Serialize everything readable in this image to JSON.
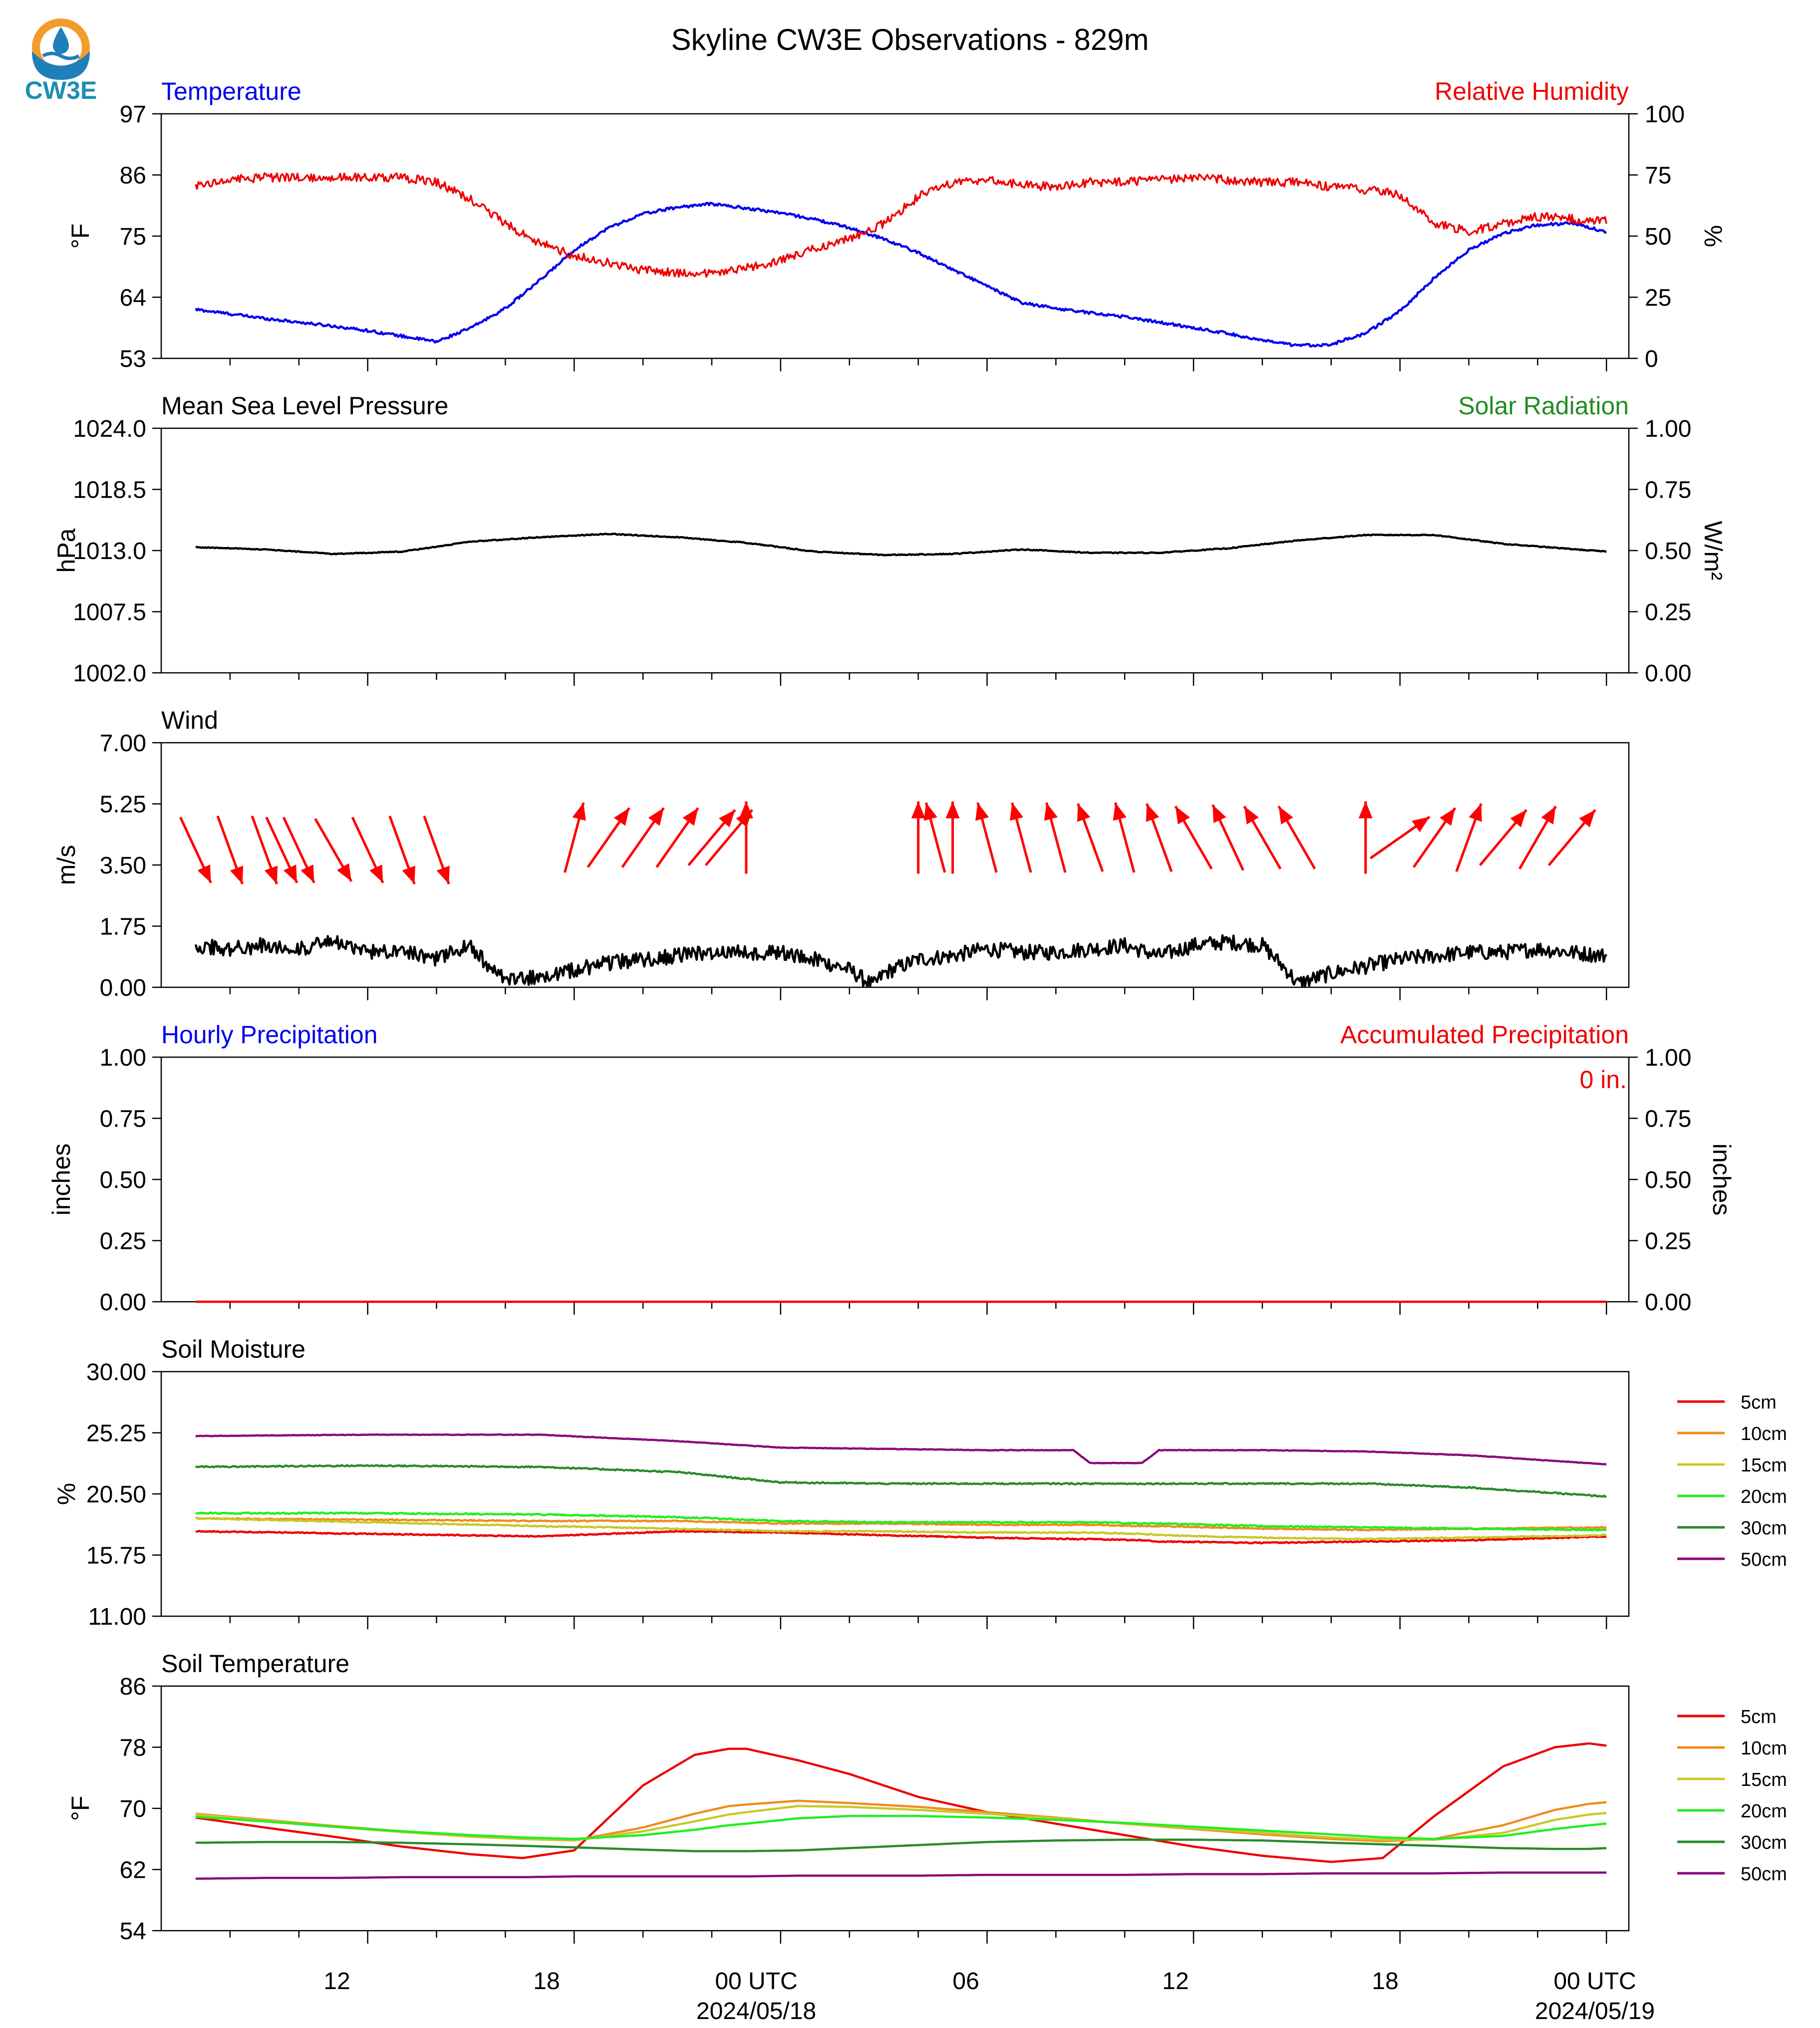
{
  "title": "Skyline CW3E Observations - 829m",
  "logo": {
    "text": "CW3E",
    "colors": {
      "sun": "#f39c2b",
      "ocean": "#1f7fb8",
      "text": "#1c8fb0"
    }
  },
  "time_axis": {
    "ticks": [
      "12",
      "18",
      "00 UTC",
      "06",
      "12",
      "18",
      "00 UTC"
    ],
    "dates": [
      "2024/05/18",
      "2024/05/19"
    ]
  },
  "chart_data": [
    {
      "type": "line",
      "name": "temperature-humidity",
      "left_title": "Temperature",
      "right_title": "Relative Humidity",
      "ylabel": "°F",
      "ylabel_right": "%",
      "ylim": [
        53,
        97
      ],
      "ylim_right": [
        0,
        100
      ],
      "yticks": [
        "53",
        "64",
        "75",
        "86",
        "97"
      ],
      "yticks_right": [
        "0",
        "25",
        "50",
        "75",
        "100"
      ],
      "x_hours": [
        7,
        8,
        9,
        10,
        11,
        12,
        13,
        14,
        15,
        16,
        17,
        18,
        19,
        20,
        21,
        22,
        23,
        24,
        25,
        26,
        27,
        28,
        29,
        30,
        31,
        32,
        33,
        34,
        35,
        36,
        37,
        38,
        39,
        40,
        41,
        42,
        43,
        44,
        45,
        46,
        47,
        48
      ],
      "series": [
        {
          "color": "#0000ee",
          "noise": 0.25,
          "values": [
            61.8,
            61.0,
            60.2,
            59.5,
            58.8,
            58.0,
            57.0,
            56.0,
            58.5,
            62.0,
            67.0,
            72.5,
            76.5,
            79.0,
            80.2,
            80.8,
            80.0,
            79.2,
            78.0,
            76.5,
            74.5,
            72.0,
            69.0,
            66.0,
            63.0,
            62.0,
            61.2,
            60.5,
            59.5,
            58.5,
            57.5,
            56.2,
            55.3,
            55.5,
            57.5,
            61.5,
            67.5,
            72.5,
            75.5,
            77.0,
            77.3,
            75.8
          ]
        },
        {
          "color": "#ee0000",
          "noise": 1.8,
          "right_axis": true,
          "values": [
            71,
            73,
            74,
            74,
            74,
            74,
            74,
            72,
            65,
            55,
            47,
            42,
            39,
            36,
            35,
            35,
            37,
            40,
            45,
            49,
            55,
            66,
            72,
            73,
            71,
            70,
            72,
            72,
            73,
            74,
            73,
            72,
            72,
            70,
            69,
            67,
            55,
            52,
            55,
            58,
            57,
            56
          ]
        }
      ]
    },
    {
      "type": "line",
      "name": "pressure",
      "left_title": "Mean Sea Level Pressure",
      "right_title": "Solar Radiation",
      "ylabel": "hPa",
      "ylabel_right": "W/m²",
      "ylim": [
        1002.0,
        1024.0
      ],
      "ylim_right": [
        0.0,
        1.0
      ],
      "yticks": [
        "1002.0",
        "1007.5",
        "1013.0",
        "1018.5",
        "1024.0"
      ],
      "yticks_right": [
        "0.00",
        "0.25",
        "0.50",
        "0.75",
        "1.00"
      ],
      "x_hours": [
        7,
        9,
        11,
        13,
        15,
        17,
        19,
        21,
        23,
        25,
        27,
        29,
        31,
        33,
        35,
        37,
        39,
        41,
        43,
        45,
        48
      ],
      "series": [
        {
          "color": "#000000",
          "noise": 0.04,
          "values": [
            1013.3,
            1013.1,
            1012.7,
            1012.9,
            1013.8,
            1014.2,
            1014.5,
            1014.2,
            1013.7,
            1012.9,
            1012.6,
            1012.7,
            1013.1,
            1012.8,
            1012.8,
            1013.2,
            1013.9,
            1014.4,
            1014.4,
            1013.6,
            1012.9
          ]
        }
      ]
    },
    {
      "type": "line",
      "name": "wind",
      "left_title": "Wind",
      "ylabel": "m/s",
      "ylim": [
        0.0,
        7.0
      ],
      "yticks": [
        "0.00",
        "1.75",
        "3.50",
        "5.25",
        "7.00"
      ],
      "x_hours": [
        7,
        8,
        9,
        10,
        11,
        12,
        13,
        14,
        15,
        15.5,
        16,
        17,
        18,
        19,
        20,
        21,
        22,
        23,
        24,
        25,
        26,
        26.7,
        27,
        28,
        29,
        30,
        31,
        32,
        33,
        34,
        35,
        36,
        37,
        38,
        38.8,
        39,
        40,
        41,
        42,
        43,
        44,
        45,
        46,
        47,
        48
      ],
      "series": [
        {
          "color": "#000000",
          "noise": 0.22,
          "values": [
            1.2,
            1.1,
            1.2,
            1.1,
            1.3,
            1.0,
            1.1,
            0.8,
            1.2,
            0.6,
            0.2,
            0.3,
            0.5,
            0.7,
            0.8,
            0.9,
            1.0,
            1.0,
            1.0,
            0.8,
            0.5,
            0.05,
            0.4,
            0.8,
            0.9,
            1.1,
            1.0,
            1.0,
            1.1,
            1.2,
            0.9,
            1.2,
            1.3,
            1.2,
            0.4,
            0.1,
            0.4,
            0.6,
            0.8,
            0.9,
            1.0,
            1.0,
            1.1,
            1.0,
            0.9
          ]
        }
      ],
      "arrows": {
        "color": "#ff0000",
        "hours": [
          7,
          8,
          9,
          9.5,
          10,
          11,
          12,
          13,
          14,
          18,
          19,
          20,
          21,
          22,
          22.5,
          23,
          28,
          28.5,
          29,
          30,
          31,
          32,
          33,
          34,
          35,
          36,
          37,
          38,
          39,
          41,
          42,
          43,
          44,
          45,
          46,
          47
        ],
        "directions_deg": [
          335,
          340,
          340,
          335,
          335,
          330,
          335,
          340,
          340,
          195,
          215,
          215,
          215,
          220,
          220,
          180,
          180,
          165,
          180,
          165,
          165,
          165,
          160,
          165,
          160,
          150,
          155,
          150,
          150,
          180,
          235,
          215,
          200,
          220,
          210,
          220
        ],
        "strength": [
          0.0,
          0.0,
          0.0,
          0.0,
          0.0,
          0.0,
          0.0,
          0.0,
          0.0,
          0.0,
          0.0,
          0.0,
          0.0,
          0.0,
          0.0,
          0.0,
          0.0,
          0.0,
          0.0,
          0.0,
          0.0,
          0.0,
          0.0,
          0.0,
          0.0,
          0.0,
          0.0,
          0.0,
          0.0,
          0.0,
          0.0,
          0.0,
          0.0,
          0.0,
          0.0,
          0.0
        ]
      }
    },
    {
      "type": "bar",
      "name": "precipitation",
      "left_title": "Hourly Precipitation",
      "right_title": "Accumulated Precipitation",
      "annotation": "0 in.",
      "ylabel": "inches",
      "ylabel_right": "inches",
      "ylim": [
        0.0,
        1.0
      ],
      "ylim_right": [
        0.0,
        1.0
      ],
      "yticks": [
        "0.00",
        "0.25",
        "0.50",
        "0.75",
        "1.00"
      ],
      "yticks_right": [
        "0.00",
        "0.25",
        "0.50",
        "0.75",
        "1.00"
      ],
      "x_hours": [
        7,
        48
      ],
      "series": [
        {
          "color": "#ee0000",
          "noise": 0,
          "right_axis": true,
          "values": [
            0,
            0
          ]
        }
      ]
    },
    {
      "type": "line",
      "name": "soil-moisture",
      "left_title": "Soil Moisture",
      "ylabel": "%",
      "ylim": [
        11.0,
        30.0
      ],
      "yticks": [
        "11.00",
        "15.75",
        "20.50",
        "25.25",
        "30.00"
      ],
      "x_hours": [
        7,
        12,
        17,
        21,
        24,
        27,
        30,
        32.5,
        33,
        34.5,
        35,
        38,
        41,
        44,
        48
      ],
      "series": [
        {
          "name": "5cm",
          "color": "#ee0000",
          "noise": 0.04,
          "values": [
            17.6,
            17.4,
            17.2,
            17.6,
            17.5,
            17.3,
            17.1,
            17.0,
            17.0,
            16.9,
            16.8,
            16.7,
            16.8,
            16.9,
            17.2
          ]
        },
        {
          "name": "10cm",
          "color": "#f08c1e",
          "noise": 0.04,
          "values": [
            18.6,
            18.5,
            18.4,
            18.4,
            18.2,
            18.2,
            18.1,
            18.1,
            18.1,
            18.0,
            18.0,
            17.8,
            17.7,
            17.8,
            17.9
          ]
        },
        {
          "name": "15cm",
          "color": "#c8c82a",
          "noise": 0.04,
          "values": [
            18.6,
            18.3,
            18.0,
            17.8,
            17.6,
            17.6,
            17.5,
            17.5,
            17.5,
            17.4,
            17.3,
            17.1,
            17.0,
            17.1,
            17.3
          ]
        },
        {
          "name": "20cm",
          "color": "#22ee22",
          "noise": 0.05,
          "values": [
            19.0,
            19.0,
            18.9,
            18.7,
            18.4,
            18.3,
            18.3,
            18.3,
            18.3,
            18.2,
            18.2,
            18.0,
            17.9,
            17.8,
            17.7
          ]
        },
        {
          "name": "30cm",
          "color": "#2a8a2a",
          "noise": 0.05,
          "values": [
            22.6,
            22.7,
            22.6,
            22.2,
            21.4,
            21.3,
            21.3,
            21.3,
            21.3,
            21.3,
            21.3,
            21.3,
            21.3,
            21.0,
            20.3
          ]
        },
        {
          "name": "50cm",
          "color": "#8b0a7a",
          "noise": 0.02,
          "values": [
            25.0,
            25.1,
            25.1,
            24.6,
            24.1,
            24.0,
            23.9,
            23.9,
            22.9,
            22.9,
            23.9,
            23.9,
            23.8,
            23.5,
            22.8
          ]
        }
      ]
    },
    {
      "type": "line",
      "name": "soil-temperature",
      "left_title": "Soil Temperature",
      "ylabel": "°F",
      "ylim": [
        54,
        86
      ],
      "yticks": [
        "54",
        "62",
        "70",
        "78",
        "86"
      ],
      "x_hours": [
        7,
        9,
        11,
        13,
        15,
        16.5,
        18,
        20,
        21.5,
        22.5,
        23,
        24.5,
        26,
        28,
        30,
        32,
        34,
        36,
        38,
        40,
        41.5,
        43,
        45,
        46.5,
        47.5,
        48
      ],
      "series": [
        {
          "name": "5cm",
          "color": "#ee0000",
          "noise": 0,
          "values": [
            68.8,
            67.5,
            66.3,
            65.0,
            64.0,
            63.5,
            64.5,
            73.0,
            77.0,
            77.8,
            77.8,
            76.3,
            74.5,
            71.5,
            69.5,
            68.0,
            66.5,
            65.0,
            63.8,
            63.0,
            63.5,
            69.0,
            75.5,
            78.0,
            78.5,
            78.2
          ]
        },
        {
          "name": "10cm",
          "color": "#f08c1e",
          "noise": 0,
          "values": [
            69.3,
            68.5,
            67.7,
            67.0,
            66.4,
            66.0,
            65.8,
            67.5,
            69.3,
            70.3,
            70.5,
            71.0,
            70.7,
            70.2,
            69.5,
            68.8,
            68.0,
            67.3,
            66.6,
            66.0,
            65.7,
            66.0,
            67.8,
            69.8,
            70.6,
            70.8
          ]
        },
        {
          "name": "15cm",
          "color": "#c8c82a",
          "noise": 0,
          "values": [
            69.2,
            68.4,
            67.6,
            66.9,
            66.3,
            66.0,
            65.8,
            67.0,
            68.3,
            69.2,
            69.5,
            70.3,
            70.2,
            69.8,
            69.3,
            68.7,
            68.0,
            67.4,
            66.8,
            66.2,
            65.9,
            65.9,
            66.8,
            68.5,
            69.2,
            69.4
          ]
        },
        {
          "name": "20cm",
          "color": "#22ee22",
          "noise": 0,
          "values": [
            68.9,
            68.3,
            67.6,
            67.0,
            66.5,
            66.2,
            66.0,
            66.5,
            67.2,
            67.8,
            68.0,
            68.7,
            69.0,
            69.0,
            68.8,
            68.5,
            68.1,
            67.6,
            67.1,
            66.6,
            66.2,
            66.0,
            66.4,
            67.3,
            67.8,
            68.0
          ]
        },
        {
          "name": "30cm",
          "color": "#2a8a2a",
          "noise": 0,
          "values": [
            65.5,
            65.6,
            65.6,
            65.5,
            65.3,
            65.1,
            64.9,
            64.6,
            64.4,
            64.4,
            64.4,
            64.5,
            64.8,
            65.2,
            65.6,
            65.8,
            65.9,
            65.9,
            65.8,
            65.5,
            65.3,
            65.1,
            64.8,
            64.7,
            64.7,
            64.8
          ]
        },
        {
          "name": "50cm",
          "color": "#8b0a7a",
          "noise": 0,
          "values": [
            60.8,
            60.9,
            60.9,
            61.0,
            61.0,
            61.0,
            61.1,
            61.1,
            61.1,
            61.1,
            61.1,
            61.2,
            61.2,
            61.2,
            61.3,
            61.3,
            61.3,
            61.4,
            61.4,
            61.5,
            61.5,
            61.5,
            61.6,
            61.6,
            61.6,
            61.6
          ]
        }
      ]
    }
  ]
}
